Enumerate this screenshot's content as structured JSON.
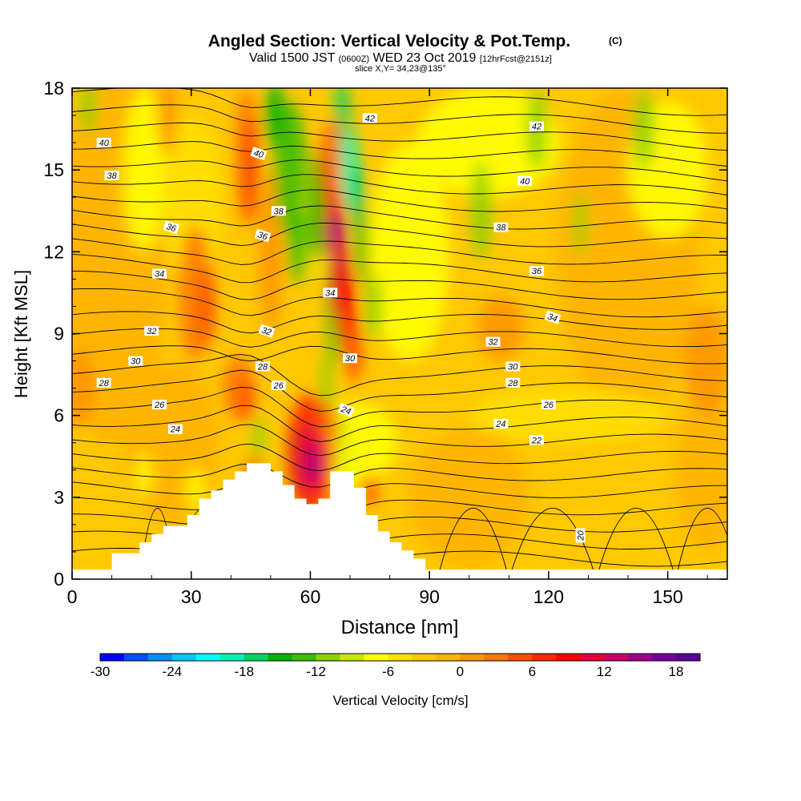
{
  "chart_data": {
    "type": "heatmap",
    "title": "Angled Section: Vertical Velocity & Pot.Temp.",
    "title_suffix": "(C)",
    "subtitle_valid": "Valid 1500 JST",
    "subtitle_utc": "(0600Z)",
    "subtitle_date": "WED 23 Oct 2019",
    "subtitle_fcst": "[12hrFcst@2151z]",
    "slice_label": "slice X,Y= 34,23@135°",
    "xlabel": "Distance [nm]",
    "ylabel": "Height [Kft MSL]",
    "xlim": [
      0,
      165
    ],
    "ylim": [
      0,
      18
    ],
    "x_ticks": [
      "0",
      "30",
      "60",
      "90",
      "120",
      "150"
    ],
    "y_ticks": [
      "0",
      "3",
      "6",
      "9",
      "12",
      "15",
      "18"
    ],
    "colorbar_label": "Vertical Velocity [cm/s]",
    "colorbar_ticks": [
      "-30",
      "-24",
      "-18",
      "-12",
      "-6",
      "0",
      "6",
      "12",
      "18"
    ],
    "colorbar_range": [
      -30,
      20
    ],
    "colorbar_colors": [
      "#0000ff",
      "#0050ff",
      "#0090ff",
      "#00c8ff",
      "#00ffff",
      "#00f0b4",
      "#00d264",
      "#00b400",
      "#3cbe00",
      "#8cd200",
      "#c8e600",
      "#ffff00",
      "#ffe000",
      "#ffc800",
      "#ffb400",
      "#ff9600",
      "#ff7800",
      "#ff5000",
      "#ff2800",
      "#ff0000",
      "#e6003c",
      "#c80064",
      "#a0008c",
      "#7800a0",
      "#5a0096"
    ],
    "isentrope_labels": [
      "42",
      "42",
      "40",
      "40",
      "40",
      "38",
      "38",
      "38",
      "36",
      "36",
      "36",
      "34",
      "34",
      "34",
      "32",
      "32",
      "32",
      "30",
      "30",
      "30",
      "28",
      "28",
      "28",
      "26",
      "26",
      "26",
      "24",
      "24",
      "24",
      "22",
      "20"
    ],
    "terrain_profile": {
      "x": [
        0,
        10,
        17,
        20,
        23,
        29,
        32,
        35,
        38,
        41,
        44,
        47,
        50,
        53,
        56,
        59,
        62,
        65,
        68,
        71,
        74,
        77,
        80,
        83,
        86,
        89,
        165
      ],
      "z": [
        0,
        0.6,
        1.0,
        1.3,
        1.6,
        2.0,
        2.6,
        2.9,
        3.3,
        3.6,
        3.9,
        3.9,
        3.6,
        3.1,
        2.6,
        2.4,
        2.6,
        3.6,
        3.6,
        3.0,
        2.0,
        1.4,
        1.0,
        0.7,
        0.4,
        0,
        0
      ]
    }
  }
}
